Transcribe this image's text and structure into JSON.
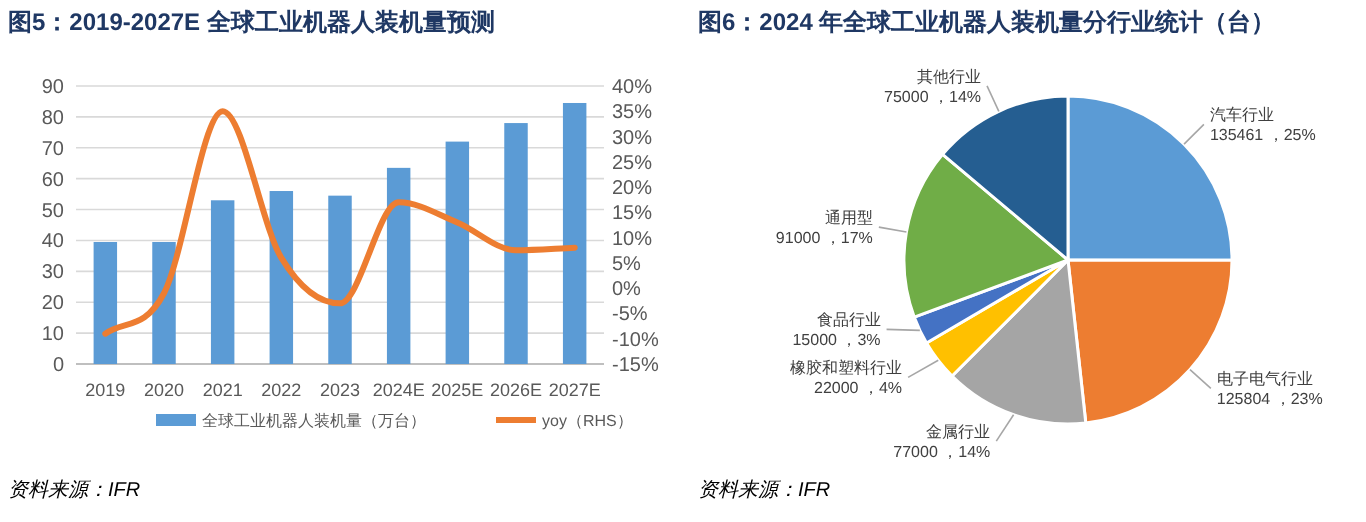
{
  "chart_data": [
    {
      "type": "bar",
      "title": "图5：2019-2027E 全球工业机器人装机量预测",
      "categories": [
        "2019",
        "2020",
        "2021",
        "2022",
        "2023",
        "2024E",
        "2025E",
        "2026E",
        "2027E"
      ],
      "series": [
        {
          "name": "全球工业机器人装机量（万台）",
          "type": "bar",
          "color": "#5b9bd5",
          "values": [
            39.5,
            39.5,
            53,
            56,
            54.5,
            63.5,
            72,
            78,
            84.5
          ]
        },
        {
          "name": "yoy（RHS）",
          "type": "line",
          "axis": "y2",
          "color": "#ed7d31",
          "values": [
            -9,
            -1,
            35,
            6,
            -3,
            17,
            13,
            7.5,
            8
          ]
        }
      ],
      "ylim": [
        0,
        90
      ],
      "yticks": [
        0,
        10,
        20,
        30,
        40,
        50,
        60,
        70,
        80,
        90
      ],
      "y2lim": [
        -15,
        40
      ],
      "y2ticks": [
        {
          "value": -15,
          "label": "-15%"
        },
        {
          "value": -10,
          "label": "-10%"
        },
        {
          "value": -5,
          "label": "-5%"
        },
        {
          "value": 0,
          "label": "0%"
        },
        {
          "value": 5,
          "label": "5%"
        },
        {
          "value": 10,
          "label": "10%"
        },
        {
          "value": 15,
          "label": "15%"
        },
        {
          "value": 20,
          "label": "20%"
        },
        {
          "value": 25,
          "label": "25%"
        },
        {
          "value": 30,
          "label": "30%"
        },
        {
          "value": 35,
          "label": "35%"
        },
        {
          "value": 40,
          "label": "40%"
        }
      ],
      "grid": "y",
      "legend": "bottom",
      "annotations": [
        "资料来源：IFR"
      ]
    },
    {
      "type": "pie",
      "title": "图6：2024 年全球工业机器人装机量分行业统计（台）",
      "categories": [
        "汽车行业",
        "电子电气行业",
        "金属行业",
        "橡胶和塑料行业",
        "食品行业",
        "通用型",
        "其他行业"
      ],
      "values": [
        135461,
        125804,
        77000,
        22000,
        15000,
        91000,
        75000
      ],
      "value_labels": [
        "135461 ，25%",
        "125804 ，23%",
        "77000 ，14%",
        "22000 ，4%",
        "15000 ，3%",
        "91000 ，17%",
        "75000 ，14%"
      ],
      "colors": [
        "#5b9bd5",
        "#ed7d31",
        "#a5a5a5",
        "#ffc000",
        "#4472c4",
        "#70ad47",
        "#255e91"
      ],
      "annotations": [
        "资料来源：IFR"
      ]
    }
  ]
}
